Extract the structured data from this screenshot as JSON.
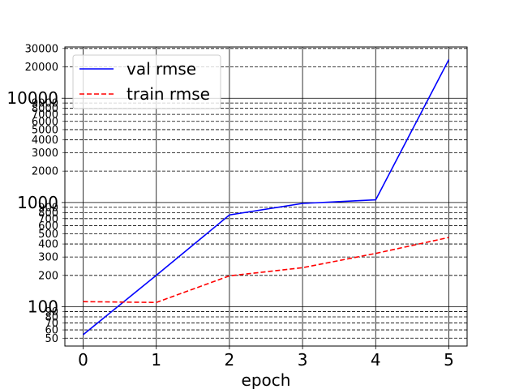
{
  "chart_data": {
    "type": "line",
    "title": "",
    "xlabel": "epoch",
    "ylabel": "",
    "yscale": "log",
    "x": [
      0,
      1,
      2,
      3,
      4,
      5
    ],
    "xlim": [
      -0.25,
      5.25
    ],
    "ylim": [
      42,
      31000
    ],
    "x_ticks": [
      0,
      1,
      2,
      3,
      4,
      5
    ],
    "y_major_ticks": [
      {
        "value": 100,
        "label": "100"
      },
      {
        "value": 1000,
        "label": "1000"
      },
      {
        "value": 10000,
        "label": "10000"
      }
    ],
    "y_minor_ticks": [
      {
        "value": 50,
        "label": "50"
      },
      {
        "value": 60,
        "label": "60"
      },
      {
        "value": 70,
        "label": "70"
      },
      {
        "value": 80,
        "label": "80"
      },
      {
        "value": 90,
        "label": "90"
      },
      {
        "value": 200,
        "label": "200"
      },
      {
        "value": 300,
        "label": "300"
      },
      {
        "value": 400,
        "label": "400"
      },
      {
        "value": 500,
        "label": "500"
      },
      {
        "value": 600,
        "label": "600"
      },
      {
        "value": 700,
        "label": "700"
      },
      {
        "value": 800,
        "label": "800"
      },
      {
        "value": 900,
        "label": "900"
      },
      {
        "value": 2000,
        "label": "2000"
      },
      {
        "value": 3000,
        "label": "3000"
      },
      {
        "value": 4000,
        "label": "4000"
      },
      {
        "value": 5000,
        "label": "5000"
      },
      {
        "value": 6000,
        "label": "6000"
      },
      {
        "value": 7000,
        "label": "7000"
      },
      {
        "value": 8000,
        "label": "8000"
      },
      {
        "value": 9000,
        "label": "9000"
      },
      {
        "value": 20000,
        "label": "20000"
      },
      {
        "value": 30000,
        "label": "30000"
      }
    ],
    "grid": true,
    "legend_position": "top-left",
    "series": [
      {
        "name": "val rmse",
        "color": "#0000ff",
        "style": "solid",
        "values": [
          54,
          200,
          760,
          980,
          1060,
          23500
        ]
      },
      {
        "name": "train rmse",
        "color": "#ff0000",
        "style": "dashed",
        "values": [
          112,
          110,
          198,
          237,
          325,
          462
        ]
      }
    ]
  }
}
